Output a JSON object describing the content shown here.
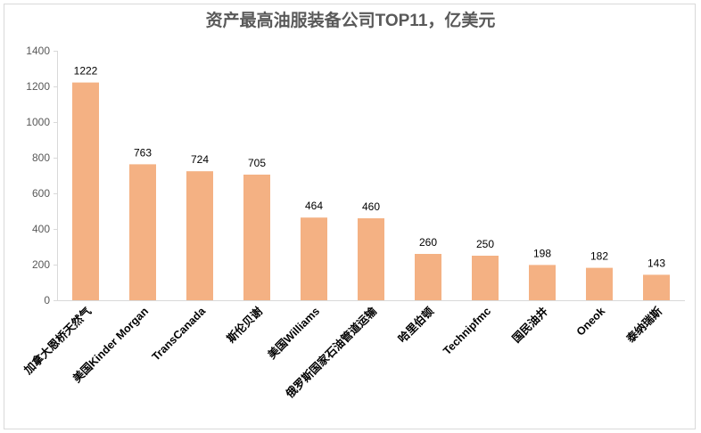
{
  "chart_data": {
    "type": "bar",
    "title": "资产最高油服装备公司TOP11，亿美元",
    "xlabel": "",
    "ylabel": "",
    "categories": [
      "加拿大恩桥天然气",
      "美国Kinder Morgan",
      "TransCanada",
      "斯伦贝谢",
      "美国Williams",
      "俄罗斯国家石油管道运输",
      "哈里伯顿",
      "Technipfmc",
      "国民油井",
      "Oneok",
      "泰纳瑞斯"
    ],
    "values": [
      1222,
      763,
      724,
      705,
      464,
      460,
      260,
      250,
      198,
      182,
      143
    ],
    "ylim": [
      0,
      1400
    ],
    "yticks": [
      0,
      200,
      400,
      600,
      800,
      1000,
      1200,
      1400
    ],
    "grid": false,
    "legend": "none",
    "bar_color": "#F4B183",
    "axis_color": "#d9d9d9"
  }
}
